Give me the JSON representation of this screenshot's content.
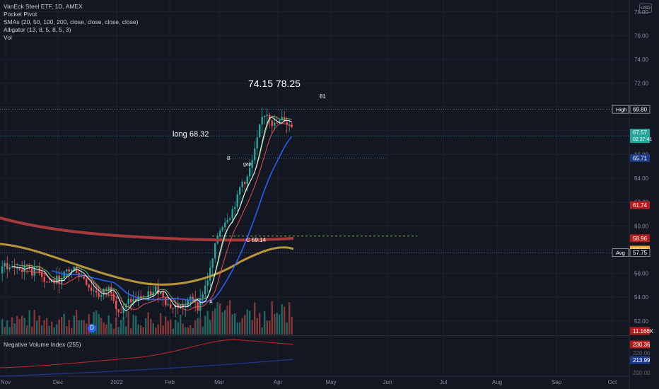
{
  "legend": {
    "symbol": "VanEck Steel ETF, 1D, AMEX",
    "ind1": "Pocket Pivot",
    "ind2": "SMAs (20, 50, 100, 200, close, close, close, close)",
    "ind3": "Alligator (13, 8, 5, 8, 5, 3)",
    "ind4": "Vol"
  },
  "currency": "USD",
  "annotations": {
    "targets": "74.15  78.25",
    "t81": "81",
    "long": "long 68.32",
    "b": "B",
    "gap": "gap",
    "c": "C 59.14",
    "a": "A",
    "d": "D"
  },
  "lower_pane": {
    "label": "Negative Volume Index (255)"
  },
  "colors": {
    "up": "#26a69a",
    "down": "#ef5350",
    "sma20": "#ffffff",
    "sma50": "#2962ff",
    "sma100": "#b7953a",
    "sma200": "#a63a3a",
    "alligator_jaw": "#1e88e5",
    "alligator_teeth": "#ef5350",
    "alligator_lips": "#66bb6a",
    "accent": "#2962ff"
  },
  "chart_data": {
    "type": "candlestick",
    "price_axis": {
      "ticks": [
        "78.00",
        "76.00",
        "74.00",
        "72.00",
        "70.00",
        "68.00",
        "66.00",
        "64.00",
        "62.00",
        "60.00",
        "58.00",
        "56.00",
        "54.00",
        "52.00"
      ],
      "range": [
        50.8,
        79.0
      ]
    },
    "time_axis": {
      "ticks": [
        "Nov",
        "Dec",
        "2022",
        "Feb",
        "Mar",
        "Apr",
        "May",
        "Jun",
        "Jul",
        "Aug",
        "Sep",
        "Oct"
      ]
    },
    "price_labels": [
      {
        "label": "High",
        "value": "69.80",
        "color": "#131722",
        "text": "#ffffff",
        "border": "#d1d4dc"
      },
      {
        "label": "",
        "value": "68.00",
        "color": "#131722",
        "text": "#5d606b",
        "border": ""
      },
      {
        "label": "",
        "value": "67.57",
        "sub": "02:37:41",
        "color": "#26a69a",
        "text": "#ffffff",
        "border": ""
      },
      {
        "label": "",
        "value": "65.71",
        "color": "#1e3a8a",
        "text": "#ffffff",
        "border": ""
      },
      {
        "label": "",
        "value": "61.74",
        "color": "#b71c1c",
        "text": "#ffffff",
        "border": ""
      },
      {
        "label": "",
        "value": "58.96",
        "color": "#b71c1c",
        "text": "#ffffff",
        "border": ""
      },
      {
        "label": "",
        "value": "58.00",
        "color": "#f5a623",
        "text": "#ffffff",
        "border": ""
      },
      {
        "label": "Avg",
        "value": "57.75",
        "color": "#131722",
        "text": "#ffffff",
        "border": "#d1d4dc"
      },
      {
        "label": "",
        "value": "11.166K",
        "color": "#b71c1c",
        "text": "#ffffff",
        "border": ""
      }
    ],
    "lower_pane_labels": [
      {
        "value": "230.36",
        "color": "#b71c1c"
      },
      {
        "value": "220.00",
        "color": ""
      },
      {
        "value": "213.99",
        "color": "#1e3a8a"
      },
      {
        "value": "200.00",
        "color": ""
      }
    ],
    "levels": {
      "high": 69.8,
      "last": 67.57,
      "lower": 65.71,
      "avg": 57.75,
      "c_level": 59.14
    }
  }
}
